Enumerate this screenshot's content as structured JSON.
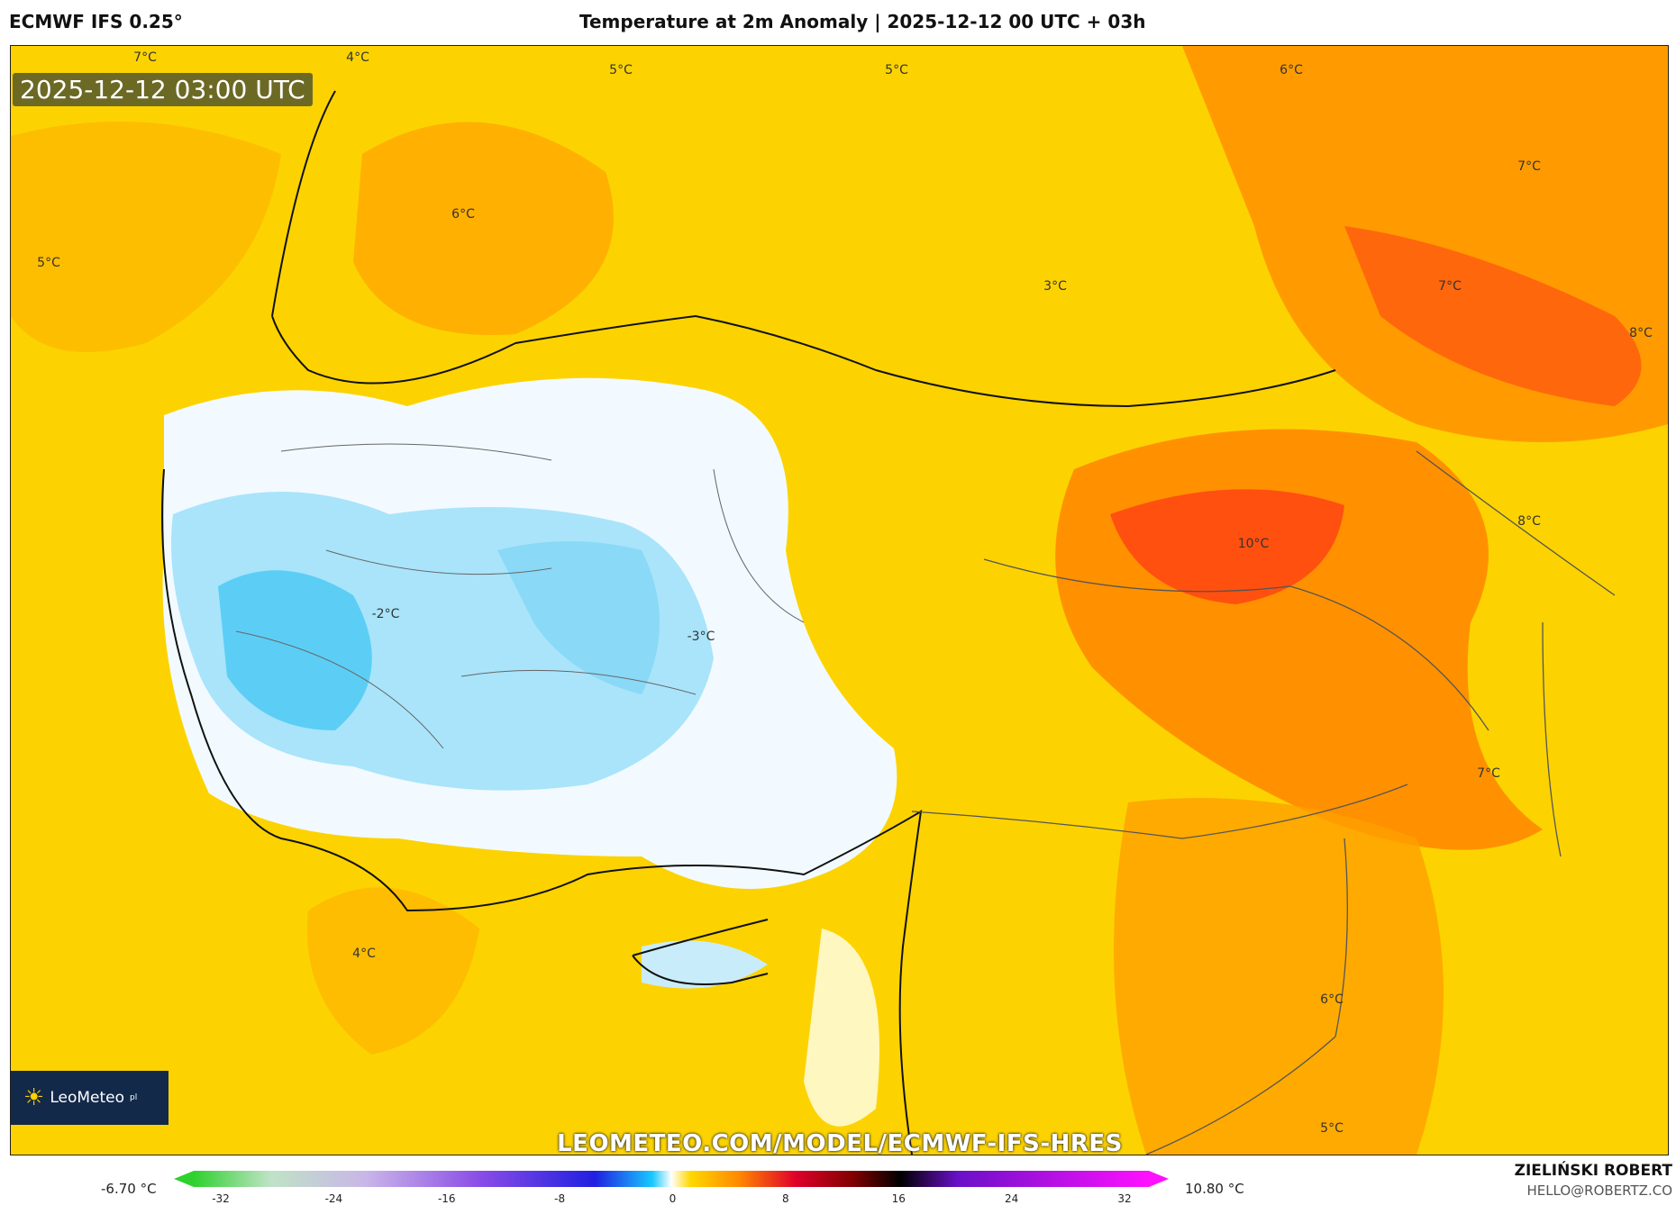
{
  "header": {
    "model": "ECMWF IFS 0.25°",
    "title": "Temperature at 2m Anomaly | 2025-12-12 00 UTC + 03h"
  },
  "map": {
    "timestamp": "2025-12-12 03:00 UTC",
    "watermark": "LEOMETEO.COM/MODEL/ECMWF-IFS-HRES",
    "logo": {
      "text": "LeoMeteo",
      "suffix": "pl"
    },
    "labels": [
      "7°C",
      "4°C",
      "5°C",
      "5°C",
      "6°C",
      "6°C",
      "5°C",
      "3°C",
      "7°C",
      "7°C",
      "8°C",
      "8°C",
      "10°C",
      "-2°C",
      "-3°C",
      "7°C",
      "4°C",
      "6°C",
      "5°C"
    ]
  },
  "colorbar": {
    "min_label": "-6.70 °C",
    "max_label": "10.80 °C",
    "ticks": [
      "-32",
      "-24",
      "-16",
      "-8",
      "0",
      "8",
      "16",
      "24",
      "32"
    ]
  },
  "footer": {
    "author": "ZIELIŃSKI ROBERT",
    "email": "HELLO@ROBERTZ.CO"
  }
}
